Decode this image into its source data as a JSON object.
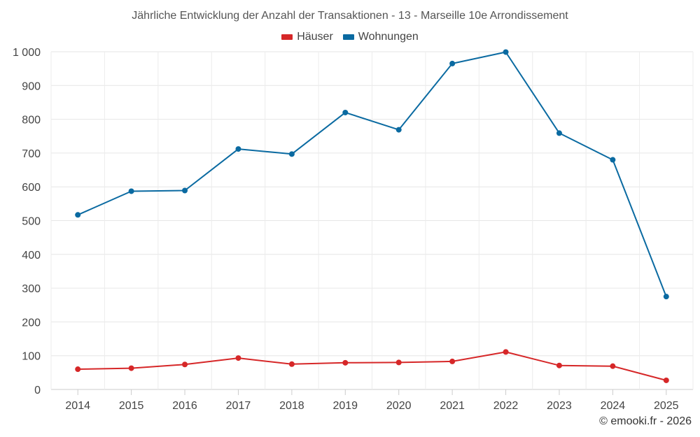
{
  "chart_data": {
    "type": "line",
    "title": "Jährliche Entwicklung der Anzahl der Transaktionen - 13 - Marseille 10e Arrondissement",
    "categories": [
      "2014",
      "2015",
      "2016",
      "2017",
      "2018",
      "2019",
      "2020",
      "2021",
      "2022",
      "2023",
      "2024",
      "2025"
    ],
    "series": [
      {
        "name": "Häuser",
        "color": "#d62728",
        "values": [
          60,
          63,
          74,
          93,
          75,
          79,
          80,
          83,
          111,
          71,
          69,
          27
        ]
      },
      {
        "name": "Wohnungen",
        "color": "#0a6aa1",
        "values": [
          517,
          587,
          589,
          712,
          697,
          820,
          769,
          965,
          999,
          759,
          680,
          275
        ]
      }
    ],
    "ylim": [
      0,
      1000
    ],
    "yticks": [
      0,
      100,
      200,
      300,
      400,
      500,
      600,
      700,
      800,
      900,
      1000
    ],
    "ytick_labels": [
      "0",
      "100",
      "200",
      "300",
      "400",
      "500",
      "600",
      "700",
      "800",
      "900",
      "1 000"
    ],
    "xlabel": "",
    "ylabel": "",
    "grid": true,
    "legend_position": "top-center"
  },
  "credits": "© emooki.fr - 2026"
}
